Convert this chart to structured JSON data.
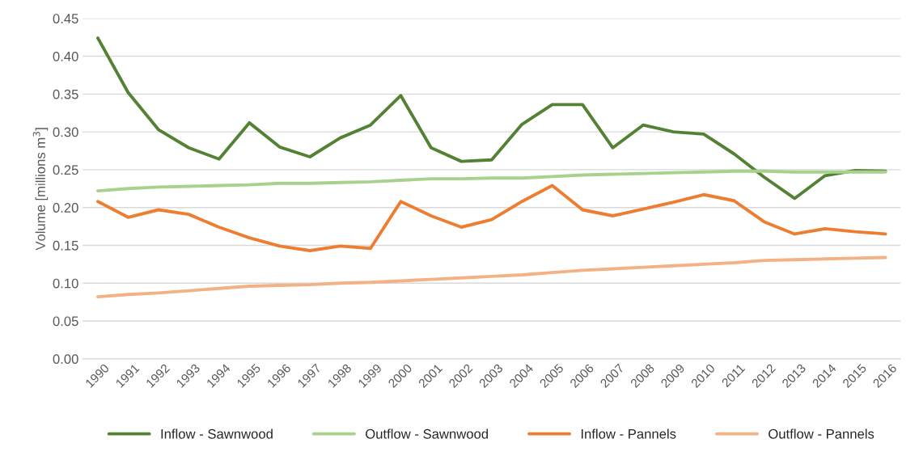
{
  "chart_data": {
    "type": "line",
    "ylabel": "Volume [millions m$^{3}$]",
    "categories": [
      "1990",
      "1991",
      "1992",
      "1993",
      "1994",
      "1995",
      "1996",
      "1997",
      "1998",
      "1999",
      "2000",
      "2001",
      "2002",
      "2003",
      "2004",
      "2005",
      "2006",
      "2007",
      "2008",
      "2009",
      "2010",
      "2011",
      "2012",
      "2013",
      "2014",
      "2015",
      "2016"
    ],
    "series": [
      {
        "name": "Inflow - Sawnwood",
        "color": "#548235",
        "values": [
          0.424,
          0.352,
          0.303,
          0.279,
          0.264,
          0.312,
          0.28,
          0.267,
          0.292,
          0.309,
          0.348,
          0.279,
          0.261,
          0.263,
          0.31,
          0.336,
          0.336,
          0.279,
          0.309,
          0.3,
          0.297,
          0.271,
          0.24,
          0.212,
          0.242,
          0.249,
          0.248
        ]
      },
      {
        "name": "Outflow - Sawnwood",
        "color": "#a9d18e",
        "values": [
          0.222,
          0.225,
          0.227,
          0.228,
          0.229,
          0.23,
          0.232,
          0.232,
          0.233,
          0.234,
          0.236,
          0.238,
          0.238,
          0.239,
          0.239,
          0.241,
          0.243,
          0.244,
          0.245,
          0.246,
          0.247,
          0.248,
          0.248,
          0.247,
          0.247,
          0.247,
          0.247
        ]
      },
      {
        "name": "Inflow - Pannels",
        "color": "#ed7d31",
        "values": [
          0.208,
          0.187,
          0.197,
          0.191,
          0.174,
          0.16,
          0.149,
          0.143,
          0.149,
          0.146,
          0.208,
          0.189,
          0.174,
          0.184,
          0.208,
          0.229,
          0.197,
          0.189,
          0.198,
          0.207,
          0.217,
          0.209,
          0.181,
          0.165,
          0.172,
          0.168,
          0.165
        ]
      },
      {
        "name": "Outflow - Pannels",
        "color": "#f4b183",
        "values": [
          0.082,
          0.085,
          0.087,
          0.09,
          0.093,
          0.096,
          0.097,
          0.098,
          0.1,
          0.101,
          0.103,
          0.105,
          0.107,
          0.109,
          0.111,
          0.114,
          0.117,
          0.119,
          0.121,
          0.123,
          0.125,
          0.127,
          0.13,
          0.131,
          0.132,
          0.133,
          0.134
        ]
      }
    ],
    "ylim": [
      0,
      0.45
    ],
    "yticks": [
      {
        "value": 0,
        "label": "0.00"
      },
      {
        "value": 0.05,
        "label": "0.05"
      },
      {
        "value": 0.1,
        "label": "0.10"
      },
      {
        "value": 0.15,
        "label": "0.15"
      },
      {
        "value": 0.2,
        "label": "0.20"
      },
      {
        "value": 0.25,
        "label": "0.25"
      },
      {
        "value": 0.3,
        "label": "0.30"
      },
      {
        "value": 0.35,
        "label": "0.35"
      },
      {
        "value": 0.4,
        "label": "0.40"
      },
      {
        "value": 0.45,
        "label": "0.45"
      }
    ],
    "grid": "y",
    "legend": "bottom",
    "marker": "none",
    "line_style": "solid"
  }
}
